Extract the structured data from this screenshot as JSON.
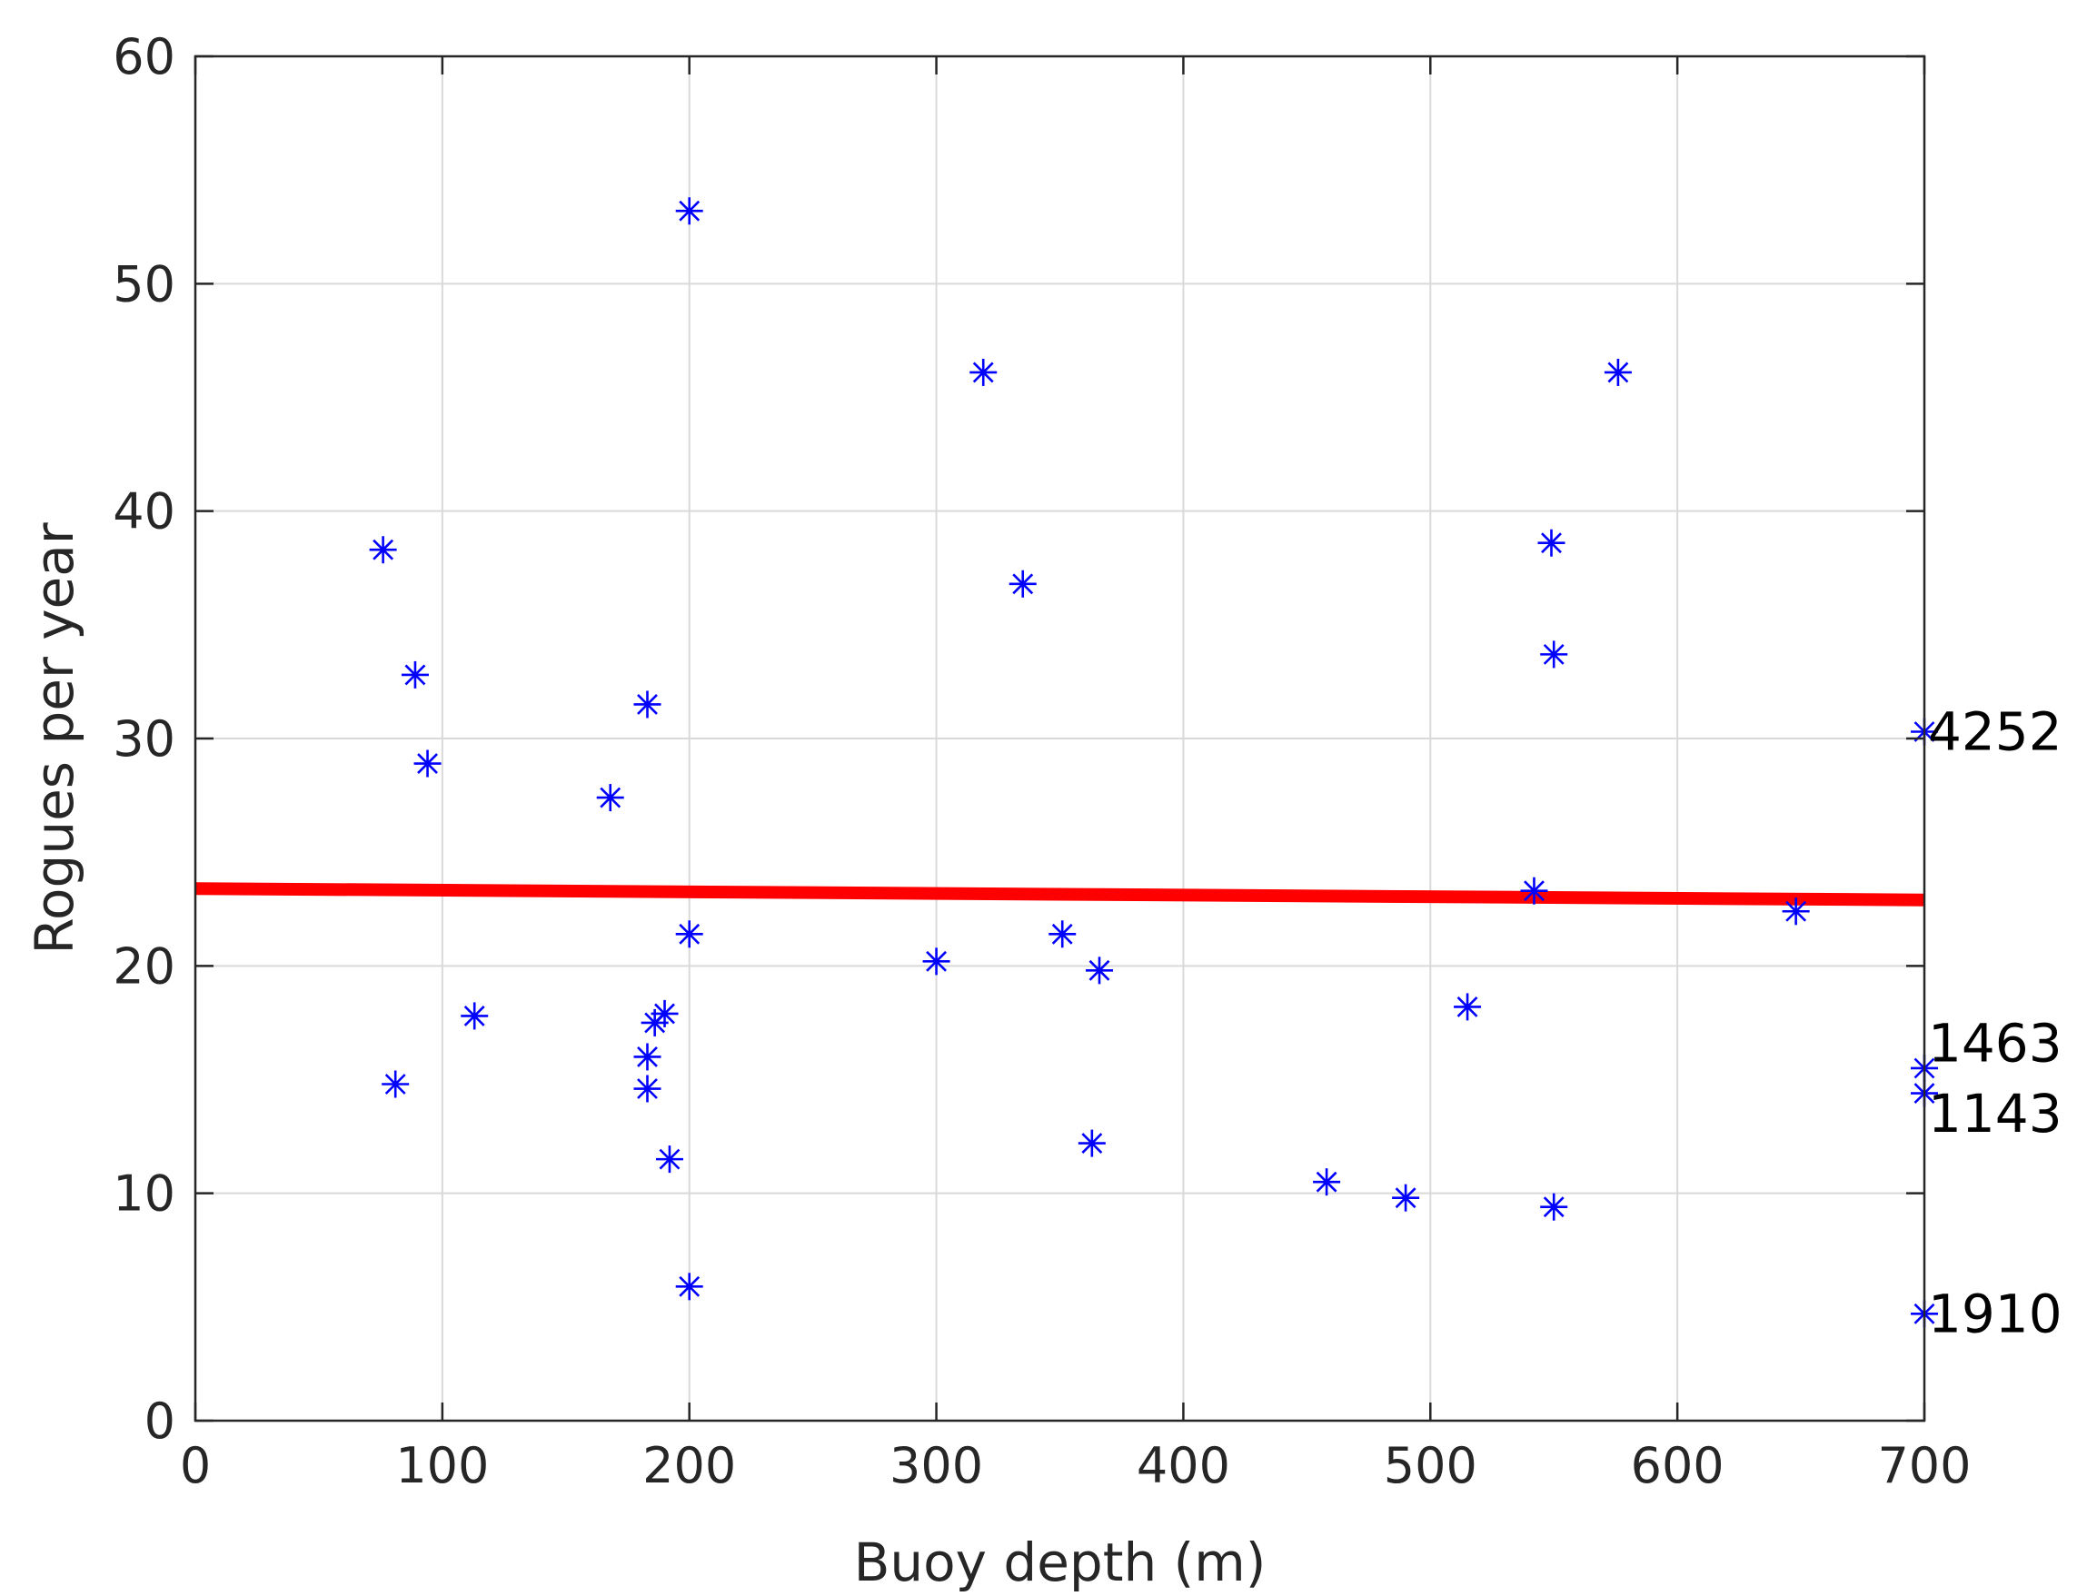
{
  "chart_data": {
    "type": "scatter",
    "title": "",
    "xlabel": "Buoy depth (m)",
    "ylabel": "Rogues per year",
    "xlim": [
      0,
      700
    ],
    "ylim": [
      0,
      60
    ],
    "xticks": [
      0,
      100,
      200,
      300,
      400,
      500,
      600,
      700
    ],
    "yticks": [
      0,
      10,
      20,
      30,
      40,
      50,
      60
    ],
    "grid": true,
    "marker": "asterisk",
    "colors": {
      "points": "#0000ff",
      "trend": "#ff0000"
    },
    "points": [
      {
        "x": 76,
        "y": 38.3
      },
      {
        "x": 89,
        "y": 32.8
      },
      {
        "x": 94,
        "y": 28.9
      },
      {
        "x": 81,
        "y": 14.8
      },
      {
        "x": 113,
        "y": 17.8
      },
      {
        "x": 168,
        "y": 27.4
      },
      {
        "x": 183,
        "y": 31.5
      },
      {
        "x": 183,
        "y": 16.0
      },
      {
        "x": 183,
        "y": 14.6
      },
      {
        "x": 186,
        "y": 17.5
      },
      {
        "x": 190,
        "y": 17.9
      },
      {
        "x": 192,
        "y": 11.5
      },
      {
        "x": 200,
        "y": 53.2
      },
      {
        "x": 200,
        "y": 21.4
      },
      {
        "x": 200,
        "y": 5.9
      },
      {
        "x": 300,
        "y": 20.2
      },
      {
        "x": 319,
        "y": 46.1
      },
      {
        "x": 335,
        "y": 36.8
      },
      {
        "x": 351,
        "y": 21.4
      },
      {
        "x": 363,
        "y": 12.2
      },
      {
        "x": 366,
        "y": 19.8
      },
      {
        "x": 458,
        "y": 10.5
      },
      {
        "x": 490,
        "y": 9.8
      },
      {
        "x": 515,
        "y": 18.2
      },
      {
        "x": 542,
        "y": 23.3
      },
      {
        "x": 549,
        "y": 38.6
      },
      {
        "x": 550,
        "y": 33.7
      },
      {
        "x": 550,
        "y": 9.4
      },
      {
        "x": 576,
        "y": 46.1
      },
      {
        "x": 648,
        "y": 22.4
      },
      {
        "x": 700,
        "y": 30.3
      },
      {
        "x": 700,
        "y": 15.5
      },
      {
        "x": 700,
        "y": 14.4
      },
      {
        "x": 700,
        "y": 4.7
      }
    ],
    "trend_line": {
      "x": [
        0,
        700
      ],
      "y": [
        23.4,
        22.9
      ]
    },
    "annotations": [
      {
        "text": "4252",
        "x": 700,
        "y": 30.3
      },
      {
        "text": "1463",
        "x": 700,
        "y": 16.6
      },
      {
        "text": "1143",
        "x": 700,
        "y": 13.5
      },
      {
        "text": "1910",
        "x": 700,
        "y": 4.7
      }
    ]
  }
}
